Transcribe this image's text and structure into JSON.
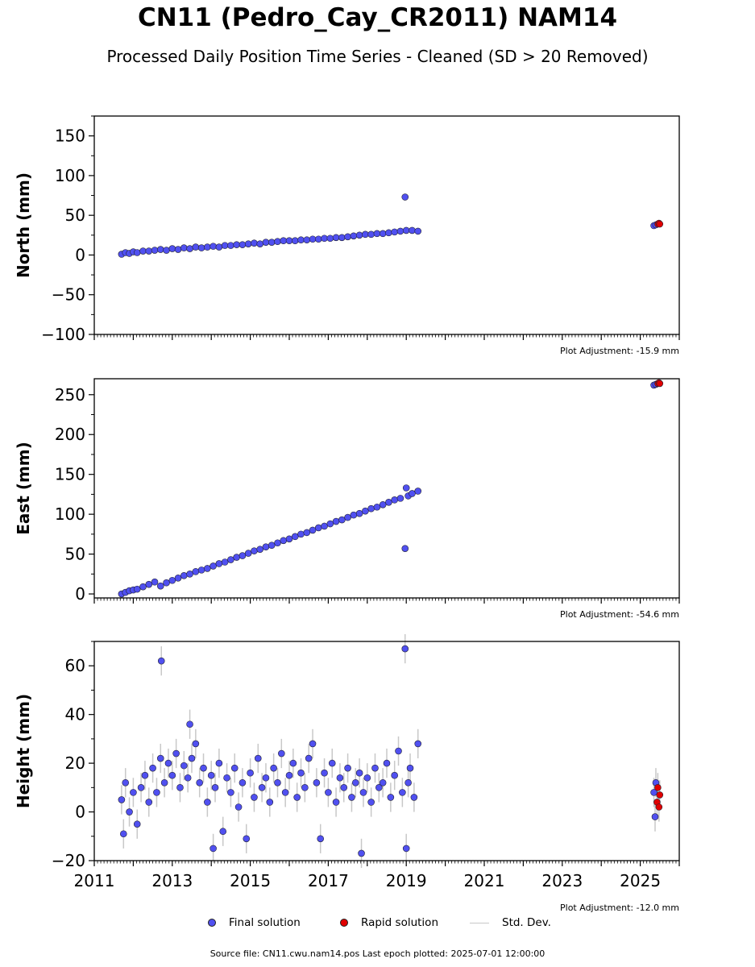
{
  "title": "CN11 (Pedro_Cay_CR2011) NAM14",
  "subtitle": "Processed Daily Position Time Series - Cleaned (SD > 20 Removed)",
  "legend": {
    "final": "Final solution",
    "rapid": "Rapid solution",
    "std": "Std. Dev."
  },
  "footer": "Source file: CN11.cwu.nam14.pos  Last epoch plotted: 2025-07-01 12:00:00",
  "colors": {
    "final": "#5050f0",
    "rapid": "#e00000",
    "std_dev": "#c8c8c8",
    "marker_edge": "#222233"
  },
  "chart_data": [
    {
      "type": "scatter",
      "panel": "north",
      "ylabel": "North (mm)",
      "xlim": [
        2011.0,
        2026.0
      ],
      "ylim": [
        -100,
        175
      ],
      "yticks": [
        -100,
        -50,
        0,
        50,
        100,
        150
      ],
      "ytick_labels": [
        "−100",
        "−50",
        "0",
        "50",
        "100",
        "150"
      ],
      "show_x_tick_labels": false,
      "adjustment_label": "Plot Adjustment: -15.9 mm",
      "final_points": [
        [
          2011.7,
          1
        ],
        [
          2011.8,
          3
        ],
        [
          2011.9,
          2
        ],
        [
          2012.0,
          4
        ],
        [
          2012.1,
          3
        ],
        [
          2012.25,
          5
        ],
        [
          2012.4,
          5
        ],
        [
          2012.55,
          6
        ],
        [
          2012.7,
          7
        ],
        [
          2012.85,
          6
        ],
        [
          2013.0,
          8
        ],
        [
          2013.15,
          7
        ],
        [
          2013.3,
          9
        ],
        [
          2013.45,
          8
        ],
        [
          2013.6,
          10
        ],
        [
          2013.75,
          9
        ],
        [
          2013.9,
          10
        ],
        [
          2014.05,
          11
        ],
        [
          2014.2,
          10
        ],
        [
          2014.35,
          12
        ],
        [
          2014.5,
          12
        ],
        [
          2014.65,
          13
        ],
        [
          2014.8,
          13
        ],
        [
          2014.95,
          14
        ],
        [
          2015.1,
          15
        ],
        [
          2015.25,
          14
        ],
        [
          2015.4,
          16
        ],
        [
          2015.55,
          16
        ],
        [
          2015.7,
          17
        ],
        [
          2015.85,
          18
        ],
        [
          2016.0,
          18
        ],
        [
          2016.15,
          18
        ],
        [
          2016.3,
          19
        ],
        [
          2016.45,
          19
        ],
        [
          2016.6,
          20
        ],
        [
          2016.75,
          20
        ],
        [
          2016.9,
          21
        ],
        [
          2017.05,
          21
        ],
        [
          2017.2,
          22
        ],
        [
          2017.35,
          22
        ],
        [
          2017.5,
          23
        ],
        [
          2017.65,
          24
        ],
        [
          2017.8,
          25
        ],
        [
          2017.95,
          26
        ],
        [
          2018.1,
          26
        ],
        [
          2018.25,
          27
        ],
        [
          2018.4,
          27
        ],
        [
          2018.55,
          28
        ],
        [
          2018.7,
          29
        ],
        [
          2018.85,
          30
        ],
        [
          2018.97,
          73
        ],
        [
          2019.0,
          31
        ],
        [
          2019.15,
          31
        ],
        [
          2019.3,
          30
        ],
        [
          2025.35,
          37
        ],
        [
          2025.4,
          38
        ]
      ],
      "rapid_points": [
        [
          2025.45,
          39
        ],
        [
          2025.48,
          40
        ],
        [
          2025.5,
          39
        ]
      ]
    },
    {
      "type": "scatter",
      "panel": "east",
      "ylabel": "East (mm)",
      "xlim": [
        2011.0,
        2026.0
      ],
      "ylim": [
        -5,
        270
      ],
      "yticks": [
        0,
        50,
        100,
        150,
        200,
        250
      ],
      "ytick_labels": [
        "0",
        "50",
        "100",
        "150",
        "200",
        "250"
      ],
      "show_x_tick_labels": false,
      "adjustment_label": "Plot Adjustment: -54.6 mm",
      "final_points": [
        [
          2011.7,
          0
        ],
        [
          2011.8,
          2
        ],
        [
          2011.9,
          4
        ],
        [
          2012.0,
          5
        ],
        [
          2012.1,
          6
        ],
        [
          2012.25,
          9
        ],
        [
          2012.4,
          12
        ],
        [
          2012.55,
          15
        ],
        [
          2012.7,
          10
        ],
        [
          2012.85,
          14
        ],
        [
          2013.0,
          17
        ],
        [
          2013.15,
          20
        ],
        [
          2013.3,
          23
        ],
        [
          2013.45,
          25
        ],
        [
          2013.6,
          28
        ],
        [
          2013.75,
          30
        ],
        [
          2013.9,
          32
        ],
        [
          2014.05,
          35
        ],
        [
          2014.2,
          38
        ],
        [
          2014.35,
          40
        ],
        [
          2014.5,
          43
        ],
        [
          2014.65,
          46
        ],
        [
          2014.8,
          48
        ],
        [
          2014.95,
          51
        ],
        [
          2015.1,
          54
        ],
        [
          2015.25,
          56
        ],
        [
          2015.4,
          59
        ],
        [
          2015.55,
          61
        ],
        [
          2015.7,
          64
        ],
        [
          2015.85,
          67
        ],
        [
          2016.0,
          69
        ],
        [
          2016.15,
          72
        ],
        [
          2016.3,
          75
        ],
        [
          2016.45,
          77
        ],
        [
          2016.6,
          80
        ],
        [
          2016.75,
          83
        ],
        [
          2016.9,
          85
        ],
        [
          2017.05,
          88
        ],
        [
          2017.2,
          91
        ],
        [
          2017.35,
          93
        ],
        [
          2017.5,
          96
        ],
        [
          2017.65,
          99
        ],
        [
          2017.8,
          101
        ],
        [
          2017.95,
          104
        ],
        [
          2018.1,
          107
        ],
        [
          2018.25,
          109
        ],
        [
          2018.4,
          112
        ],
        [
          2018.55,
          115
        ],
        [
          2018.7,
          118
        ],
        [
          2018.85,
          120
        ],
        [
          2018.97,
          57
        ],
        [
          2019.0,
          133
        ],
        [
          2019.05,
          123
        ],
        [
          2019.15,
          126
        ],
        [
          2019.3,
          129
        ],
        [
          2025.35,
          262
        ],
        [
          2025.4,
          263
        ]
      ],
      "rapid_points": [
        [
          2025.45,
          264
        ],
        [
          2025.48,
          265
        ],
        [
          2025.5,
          264
        ]
      ]
    },
    {
      "type": "scatter",
      "panel": "height",
      "ylabel": "Height (mm)",
      "xlim": [
        2011.0,
        2026.0
      ],
      "ylim": [
        -20,
        70
      ],
      "yticks": [
        -20,
        0,
        20,
        40,
        60
      ],
      "ytick_labels": [
        "−20",
        "0",
        "20",
        "40",
        "60"
      ],
      "show_x_tick_labels": true,
      "xticks": [
        2011,
        2013,
        2015,
        2017,
        2019,
        2021,
        2023,
        2025
      ],
      "xtick_labels": [
        "2011",
        "2013",
        "2015",
        "2017",
        "2019",
        "2021",
        "2023",
        "2025"
      ],
      "adjustment_label": "Plot Adjustment: -12.0 mm",
      "final_points": [
        [
          2011.7,
          5
        ],
        [
          2011.75,
          -9
        ],
        [
          2011.8,
          12
        ],
        [
          2011.9,
          0
        ],
        [
          2012.0,
          8
        ],
        [
          2012.1,
          -5
        ],
        [
          2012.2,
          10
        ],
        [
          2012.3,
          15
        ],
        [
          2012.4,
          4
        ],
        [
          2012.5,
          18
        ],
        [
          2012.6,
          8
        ],
        [
          2012.7,
          22
        ],
        [
          2012.72,
          62
        ],
        [
          2012.8,
          12
        ],
        [
          2012.9,
          20
        ],
        [
          2013.0,
          15
        ],
        [
          2013.1,
          24
        ],
        [
          2013.2,
          10
        ],
        [
          2013.3,
          19
        ],
        [
          2013.4,
          14
        ],
        [
          2013.45,
          36
        ],
        [
          2013.5,
          22
        ],
        [
          2013.6,
          28
        ],
        [
          2013.7,
          12
        ],
        [
          2013.8,
          18
        ],
        [
          2013.9,
          4
        ],
        [
          2014.0,
          15
        ],
        [
          2014.05,
          -15
        ],
        [
          2014.1,
          10
        ],
        [
          2014.2,
          20
        ],
        [
          2014.3,
          -8
        ],
        [
          2014.4,
          14
        ],
        [
          2014.5,
          8
        ],
        [
          2014.6,
          18
        ],
        [
          2014.7,
          2
        ],
        [
          2014.8,
          12
        ],
        [
          2014.9,
          -11
        ],
        [
          2015.0,
          16
        ],
        [
          2015.1,
          6
        ],
        [
          2015.2,
          22
        ],
        [
          2015.3,
          10
        ],
        [
          2015.4,
          14
        ],
        [
          2015.5,
          4
        ],
        [
          2015.6,
          18
        ],
        [
          2015.7,
          12
        ],
        [
          2015.8,
          24
        ],
        [
          2015.9,
          8
        ],
        [
          2016.0,
          15
        ],
        [
          2016.1,
          20
        ],
        [
          2016.2,
          6
        ],
        [
          2016.3,
          16
        ],
        [
          2016.4,
          10
        ],
        [
          2016.5,
          22
        ],
        [
          2016.6,
          28
        ],
        [
          2016.7,
          12
        ],
        [
          2016.8,
          -11
        ],
        [
          2016.9,
          16
        ],
        [
          2017.0,
          8
        ],
        [
          2017.1,
          20
        ],
        [
          2017.2,
          4
        ],
        [
          2017.3,
          14
        ],
        [
          2017.4,
          10
        ],
        [
          2017.5,
          18
        ],
        [
          2017.6,
          6
        ],
        [
          2017.7,
          12
        ],
        [
          2017.8,
          16
        ],
        [
          2017.85,
          -17
        ],
        [
          2017.9,
          8
        ],
        [
          2018.0,
          14
        ],
        [
          2018.1,
          4
        ],
        [
          2018.2,
          18
        ],
        [
          2018.3,
          10
        ],
        [
          2018.4,
          12
        ],
        [
          2018.5,
          20
        ],
        [
          2018.6,
          6
        ],
        [
          2018.7,
          15
        ],
        [
          2018.8,
          25
        ],
        [
          2018.9,
          8
        ],
        [
          2018.97,
          67
        ],
        [
          2019.0,
          -15
        ],
        [
          2019.05,
          12
        ],
        [
          2019.1,
          18
        ],
        [
          2019.2,
          6
        ],
        [
          2019.3,
          28
        ],
        [
          2025.35,
          8
        ],
        [
          2025.38,
          -2
        ],
        [
          2025.4,
          12
        ]
      ],
      "rapid_points": [
        [
          2025.43,
          4
        ],
        [
          2025.45,
          10
        ],
        [
          2025.48,
          2
        ],
        [
          2025.5,
          7
        ]
      ]
    }
  ]
}
